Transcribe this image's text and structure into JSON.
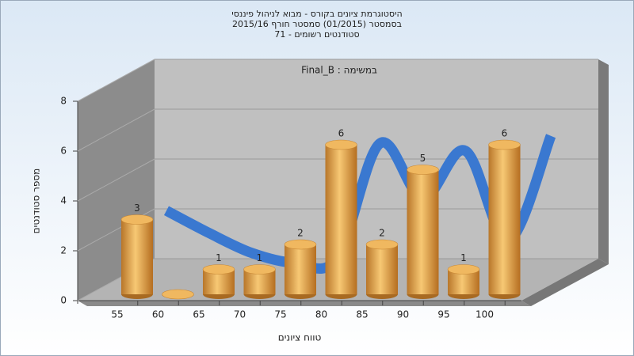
{
  "chart_data": {
    "type": "bar3d",
    "title_lines": [
      "היסטוגרמת ציונים בקורס - מבוא לניהול פיננסי",
      "בסמסטר  (01/2015)  סמסטר חורף 2015/16",
      "סטודנטים רשומים - 71"
    ],
    "annotation": "במשימה : Final_B",
    "x_label": "טווח ציונים",
    "y_label": "מספר סטודנטים",
    "categories": [
      "55",
      "60",
      "65",
      "70",
      "75",
      "80",
      "85",
      "90",
      "95",
      "100"
    ],
    "values": [
      3,
      0,
      1,
      1,
      2,
      6,
      2,
      5,
      1,
      6
    ],
    "color": "#e3a040",
    "curve_values": [
      2.5,
      1.6,
      0.8,
      0.4,
      0.6,
      5.2,
      3.0,
      4.9,
      1.3,
      5.5
    ],
    "curve_color": "#3a78d0",
    "ylim": [
      0,
      8
    ],
    "yticks": [
      0,
      2,
      4,
      6,
      8
    ],
    "grid": true
  }
}
